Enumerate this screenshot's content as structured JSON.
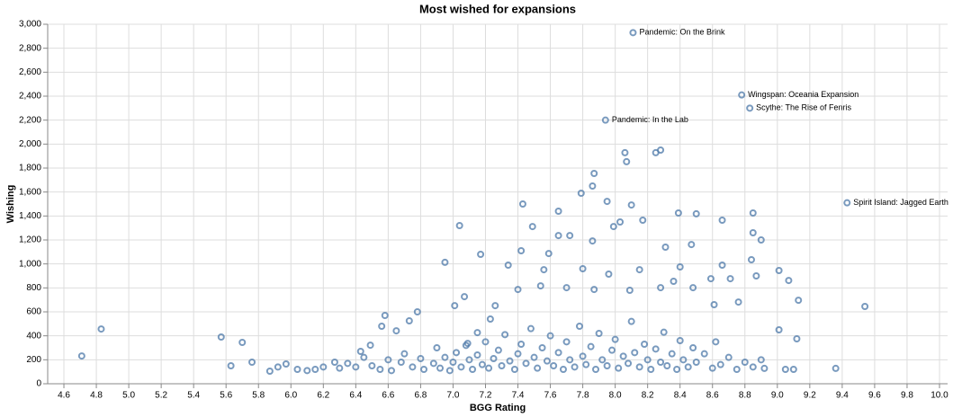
{
  "chart_data": {
    "type": "scatter",
    "title": "Most wished for expansions",
    "xlabel": "BGG Rating",
    "ylabel": "Wishing",
    "color": "#4c78a8",
    "grid": true,
    "xlim": [
      4.5,
      10.05
    ],
    "xticks": [
      4.6,
      4.8,
      {
        "value": 5,
        "label": "5.0"
      },
      5.2,
      5.4,
      5.6,
      5.8,
      {
        "value": 6,
        "label": "6.0"
      },
      6.2,
      6.4,
      6.6,
      6.8,
      {
        "value": 7,
        "label": "7.0"
      },
      7.2,
      7.4,
      7.6,
      7.8,
      {
        "value": 8,
        "label": "8.0"
      },
      8.2,
      8.4,
      8.6,
      8.8,
      {
        "value": 9,
        "label": "9.0"
      },
      9.2,
      9.4,
      9.6,
      9.8,
      {
        "value": 10,
        "label": "10.0"
      }
    ],
    "ylim": [
      0,
      3000
    ],
    "yticks": [
      0,
      200,
      400,
      600,
      800,
      {
        "value": 1000,
        "label": "1,000"
      },
      {
        "value": 1200,
        "label": "1,200"
      },
      {
        "value": 1400,
        "label": "1,400"
      },
      {
        "value": 1600,
        "label": "1,600"
      },
      {
        "value": 1800,
        "label": "1,800"
      },
      {
        "value": 2000,
        "label": "2,000"
      },
      {
        "value": 2200,
        "label": "2,200"
      },
      {
        "value": 2400,
        "label": "2,400"
      },
      {
        "value": 2600,
        "label": "2,600"
      },
      {
        "value": 2800,
        "label": "2,800"
      },
      {
        "value": 3000,
        "label": "3,000"
      }
    ],
    "annotations": [
      {
        "text": "Pandemic: On the Brink",
        "x": 8.11,
        "y": 2930
      },
      {
        "text": "Wingspan: Oceania Expansion",
        "x": 8.78,
        "y": 2410
      },
      {
        "text": "Scythe: The Rise of Fenris",
        "x": 8.83,
        "y": 2300
      },
      {
        "text": "Pandemic: In the Lab",
        "x": 7.94,
        "y": 2200
      },
      {
        "text": "Spirit Island: Jagged Earth",
        "x": 9.43,
        "y": 1510
      }
    ],
    "x": [
      4.71,
      4.83,
      5.57,
      5.63,
      5.7,
      5.76,
      7.04,
      6.95,
      7.17,
      7.43,
      7.49,
      7.65,
      7.79,
      7.86,
      7.87,
      7.95,
      8.06,
      8.07,
      8.1,
      8.25,
      8.28,
      8.39,
      8.5,
      8.66,
      8.85,
      8.85,
      8.9,
      8.03,
      8.17,
      7.99,
      7.86,
      7.65,
      7.72,
      7.42,
      8.47,
      8.31,
      8.84,
      8.66,
      9.01,
      9.07,
      9.13,
      9.54,
      9.01,
      9.12,
      9.36,
      9.1,
      9.05,
      8.92,
      7.07,
      7.01,
      6.78,
      6.73,
      6.58,
      6.56,
      6.65,
      6.49,
      6.43,
      6.27,
      6.04,
      5.87,
      5.97,
      7.34,
      7.59,
      7.56,
      7.8,
      7.96,
      8.15,
      8.4,
      8.36,
      8.59,
      8.71,
      8.87,
      8.76,
      8.61,
      8.48,
      8.28,
      8.09,
      7.87,
      7.7,
      7.54,
      7.4,
      7.26,
      7.23,
      7.15,
      7.09,
      6.5,
      6.55,
      6.6,
      6.62,
      6.68,
      6.7,
      6.75,
      6.8,
      6.82,
      6.88,
      6.9,
      6.92,
      6.95,
      6.98,
      7.0,
      7.02,
      7.05,
      7.08,
      7.1,
      7.12,
      7.15,
      7.18,
      7.2,
      7.22,
      7.25,
      7.28,
      7.3,
      7.32,
      7.35,
      7.38,
      7.4,
      7.42,
      7.45,
      7.48,
      7.5,
      7.52,
      7.55,
      7.58,
      7.6,
      7.62,
      7.65,
      7.68,
      7.7,
      7.72,
      7.75,
      7.78,
      7.8,
      7.82,
      7.85,
      7.88,
      7.9,
      7.92,
      7.95,
      7.98,
      8.0,
      8.02,
      8.05,
      8.08,
      8.1,
      8.12,
      8.15,
      8.18,
      8.2,
      8.22,
      8.25,
      8.28,
      8.3,
      8.32,
      8.35,
      8.38,
      8.4,
      8.42,
      8.45,
      8.48,
      8.5,
      8.55,
      8.6,
      8.62,
      8.65,
      8.7,
      8.75,
      8.8,
      8.85,
      8.9,
      6.3,
      6.35,
      6.4,
      6.45,
      6.15,
      6.2,
      6.1,
      5.92
    ],
    "values": [
      232,
      457,
      390,
      150,
      345,
      180,
      1320,
      1013,
      1080,
      1500,
      1312,
      1440,
      1590,
      1650,
      1755,
      1522,
      1928,
      1853,
      1492,
      1928,
      1950,
      1425,
      1418,
      1365,
      1425,
      1260,
      1200,
      1350,
      1365,
      1312,
      1192,
      1237,
      1237,
      1110,
      1162,
      1140,
      1035,
      990,
      945,
      862,
      697,
      645,
      450,
      375,
      128,
      120,
      120,
      128,
      727,
      652,
      600,
      525,
      570,
      480,
      442,
      322,
      270,
      180,
      120,
      105,
      165,
      990,
      1087,
      952,
      960,
      915,
      952,
      975,
      855,
      877,
      877,
      900,
      682,
      660,
      802,
      802,
      780,
      787,
      802,
      817,
      787,
      652,
      540,
      427,
      337,
      150,
      120,
      200,
      110,
      180,
      250,
      140,
      210,
      120,
      170,
      300,
      130,
      220,
      110,
      180,
      260,
      140,
      320,
      200,
      120,
      240,
      160,
      350,
      130,
      210,
      280,
      150,
      410,
      190,
      120,
      250,
      330,
      170,
      460,
      220,
      130,
      300,
      190,
      400,
      150,
      260,
      120,
      350,
      200,
      140,
      480,
      230,
      160,
      310,
      120,
      420,
      200,
      150,
      280,
      370,
      130,
      230,
      170,
      520,
      260,
      140,
      330,
      200,
      120,
      290,
      180,
      430,
      150,
      250,
      120,
      360,
      200,
      140,
      300,
      180,
      250,
      130,
      350,
      160,
      220,
      120,
      180,
      140,
      200,
      130,
      170,
      140,
      220,
      120,
      140,
      110,
      140
    ]
  }
}
